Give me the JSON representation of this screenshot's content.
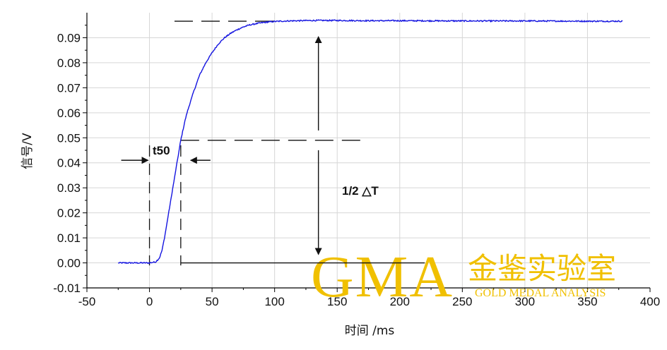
{
  "chart_data": {
    "type": "line",
    "xlabel": "时间 /ms",
    "ylabel": "信号/V",
    "xlim": [
      -50,
      400
    ],
    "ylim": [
      -0.01,
      0.1
    ],
    "grid": true,
    "xticks": [
      -50,
      0,
      50,
      100,
      150,
      200,
      250,
      300,
      350,
      400
    ],
    "xtick_labels": [
      "-50",
      "0",
      "50",
      "100",
      "150",
      "200",
      "250",
      "300",
      "350",
      "400"
    ],
    "yticks": [
      -0.01,
      0.0,
      0.01,
      0.02,
      0.03,
      0.04,
      0.05,
      0.06,
      0.07,
      0.08,
      0.09
    ],
    "ytick_labels": [
      "-0.01",
      "0.00",
      "0.01",
      "0.02",
      "0.03",
      "0.04",
      "0.05",
      "0.06",
      "0.07",
      "0.08",
      "0.09"
    ],
    "series": [
      {
        "color": "#1414e0",
        "x": [
          -25,
          0,
          5,
          8,
          10,
          12,
          15,
          18,
          20,
          22,
          25,
          28,
          30,
          35,
          40,
          45,
          50,
          55,
          60,
          65,
          70,
          75,
          80,
          85,
          90,
          95,
          100,
          110,
          120,
          130,
          140,
          150,
          175,
          200,
          250,
          300,
          350,
          378
        ],
        "y": [
          0.0,
          0.0,
          0.0004,
          0.002,
          0.005,
          0.01,
          0.019,
          0.028,
          0.034,
          0.04,
          0.049,
          0.056,
          0.06,
          0.068,
          0.075,
          0.08,
          0.084,
          0.0875,
          0.09,
          0.0918,
          0.0932,
          0.0943,
          0.0951,
          0.0956,
          0.096,
          0.0963,
          0.0965,
          0.0967,
          0.0968,
          0.0969,
          0.0969,
          0.0969,
          0.0968,
          0.0968,
          0.0967,
          0.0967,
          0.0966,
          0.0966
        ]
      }
    ],
    "annotations": {
      "t50_label": "t50",
      "delta_label": "1/2 △T",
      "t_start": 0,
      "t_50": 25,
      "y_top": 0.0966,
      "y_mid": 0.049,
      "y_base": 0.0,
      "top_dash_from": 20,
      "top_dash_to": 100,
      "mid_dash_from": 25,
      "mid_dash_to": 175,
      "base_line_from": 25,
      "base_line_to": 220,
      "arrow_x": 135
    }
  },
  "watermark": {
    "brand": "GMA",
    "chinese": "金鉴实验室",
    "english": "GOLD MEDAL ANALYSIS",
    "color": "#f0c000"
  }
}
